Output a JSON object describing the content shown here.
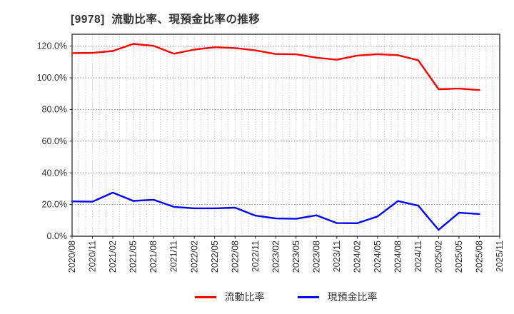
{
  "chart_data": {
    "type": "line",
    "title": "[9978]  流動比率、現預金比率の推移",
    "ticker_code": "9978",
    "categories": [
      "2020/08",
      "2020/11",
      "2021/02",
      "2021/05",
      "2021/08",
      "2021/11",
      "2022/02",
      "2022/05",
      "2022/08",
      "2022/11",
      "2023/02",
      "2023/05",
      "2023/08",
      "2023/11",
      "2024/02",
      "2024/05",
      "2024/08",
      "2024/11",
      "2025/02",
      "2025/05",
      "2025/08",
      "2025/11"
    ],
    "series": [
      {
        "name": "流動比率",
        "color": "#ff0000",
        "values": [
          115.6,
          115.7,
          116.9,
          121.4,
          120.2,
          115.2,
          117.8,
          119.3,
          118.8,
          117.3,
          115.0,
          114.8,
          112.7,
          111.4,
          114.0,
          114.9,
          114.3,
          111.1,
          92.8,
          93.2,
          92.2
        ]
      },
      {
        "name": "現預金比率",
        "color": "#0000ff",
        "values": [
          22.0,
          21.8,
          27.5,
          22.3,
          23.0,
          18.5,
          17.6,
          17.6,
          18.0,
          13.0,
          11.2,
          11.0,
          13.2,
          8.3,
          8.2,
          12.5,
          22.2,
          19.3,
          4.0,
          14.8,
          14.0
        ]
      }
    ],
    "ylim": [
      0,
      120
    ],
    "y_ticks": [
      "0.0%",
      "20.0%",
      "40.0%",
      "60.0%",
      "80.0%",
      "100.0%",
      "120.0%"
    ],
    "y_tick_step_pct": 20,
    "x_axis_note": "quarterly major ticks, monthly minor dotted gridlines, labels rotated 90",
    "grid": {
      "horizontal": "dotted",
      "vertical": "dotted-monthly",
      "h_color": "#8a8a8a",
      "v_color": "#b8b8b8"
    },
    "axis_color": "#262626",
    "tick_label_color": "#333333",
    "legend_position": "bottom-center"
  }
}
